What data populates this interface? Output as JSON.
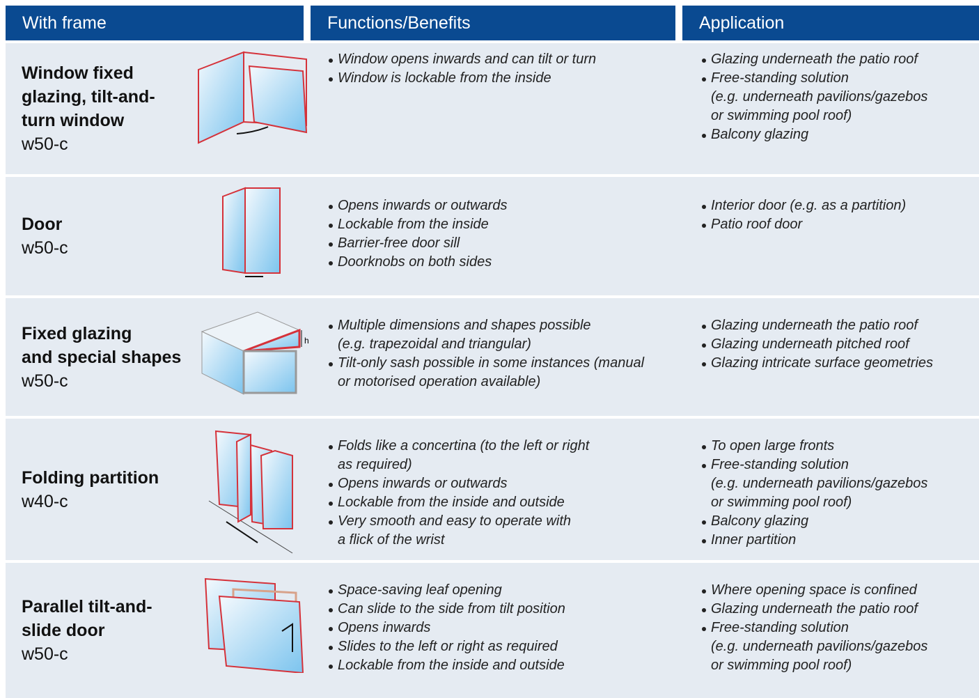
{
  "header": {
    "columns": [
      "With frame",
      "Functions/Benefits",
      "Application"
    ]
  },
  "table": {
    "rows": [
      {
        "title": [
          "Window fixed",
          "glazing, tilt-and-",
          "turn window"
        ],
        "code": "w50-c",
        "functions": [
          [
            "Window opens inwards and can tilt or turn"
          ],
          [
            "Window is lockable from the inside"
          ]
        ],
        "applications": [
          [
            "Glazing underneath the patio roof"
          ],
          [
            "Free-standing solution",
            "(e.g. underneath pavilions/gazebos",
            "or swimming pool roof)"
          ],
          [
            "Balcony glazing"
          ]
        ]
      },
      {
        "title": [
          "Door"
        ],
        "code": "w50-c",
        "functions": [
          [
            "Opens inwards or outwards"
          ],
          [
            "Lockable from the inside"
          ],
          [
            "Barrier-free door sill"
          ],
          [
            "Doorknobs on both sides"
          ]
        ],
        "applications": [
          [
            "Interior door (e.g. as a partition)"
          ],
          [
            "Patio roof door"
          ]
        ]
      },
      {
        "title": [
          "Fixed glazing",
          "and special shapes"
        ],
        "code": "w50-c",
        "icon_label": "h",
        "functions": [
          [
            "Multiple dimensions and shapes possible",
            "(e.g. trapezoidal and triangular)"
          ],
          [
            "Tilt-only sash possible in some instances (manual",
            "or motorised operation available)"
          ]
        ],
        "applications": [
          [
            "Glazing underneath the patio roof"
          ],
          [
            "Glazing underneath pitched roof"
          ],
          [
            "Glazing intricate surface geometries"
          ]
        ]
      },
      {
        "title": [
          "Folding partition"
        ],
        "code": "w40-c",
        "functions": [
          [
            "Folds like a concertina (to the left or right",
            "as required)"
          ],
          [
            "Opens inwards or outwards"
          ],
          [
            "Lockable from the inside and outside"
          ],
          [
            "Very smooth and easy to operate with",
            "a flick of the wrist"
          ]
        ],
        "applications": [
          [
            "To open large fronts"
          ],
          [
            "Free-standing solution",
            "(e.g. underneath pavilions/gazebos",
            "or swimming pool roof)"
          ],
          [
            "Balcony glazing"
          ],
          [
            "Inner partition"
          ]
        ]
      },
      {
        "title": [
          "Parallel tilt-and-",
          "slide door"
        ],
        "code": "w50-c",
        "functions": [
          [
            "Space-saving leaf opening"
          ],
          [
            "Can slide to the side from tilt position"
          ],
          [
            "Opens inwards"
          ],
          [
            "Slides to the left or right as required"
          ],
          [
            "Lockable from the inside and outside"
          ]
        ],
        "applications": [
          [
            "Where opening space is confined"
          ],
          [
            "Glazing underneath the patio roof"
          ],
          [
            "Free-standing solution",
            "(e.g. underneath pavilions/gazebos",
            "or swimming pool roof)"
          ]
        ]
      }
    ]
  }
}
